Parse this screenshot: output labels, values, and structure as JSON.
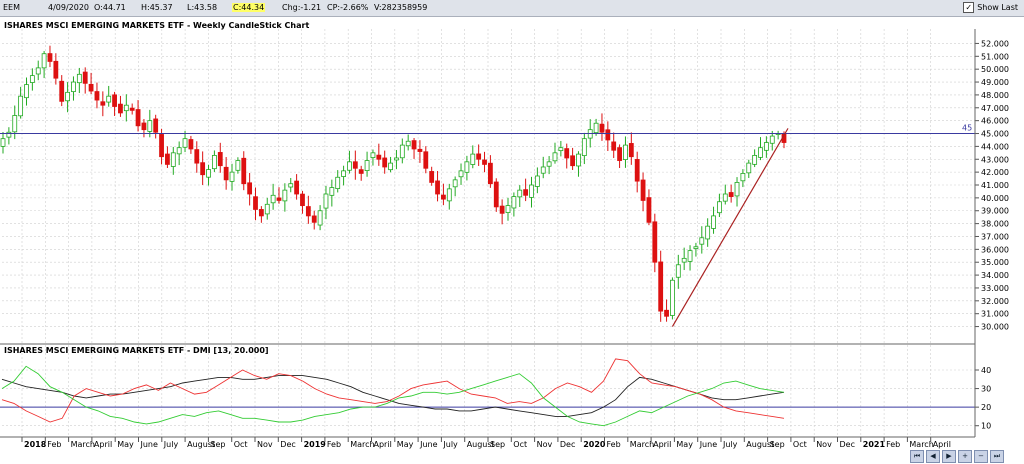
{
  "infobar": {
    "symbol": "EEM",
    "date": "4/09/2020",
    "open": "O:44.71",
    "high": "H:45.37",
    "low": "L:43.58",
    "close": "C:44.34",
    "change": "Chg:-1.21",
    "change_pct": "CP:-2.66%",
    "volume": "V:282358959",
    "show_last_label": "Show Last",
    "show_last_checked": true
  },
  "colors": {
    "up": "#22aa22",
    "down": "#dd1111",
    "level_line": "#3a3aa0",
    "trend_line": "#aa2222",
    "dmi_black": "#222222",
    "dmi_red": "#ee3333",
    "dmi_green": "#33cc33",
    "dmi_ref": "#3a3aa0"
  },
  "chart_data": [
    {
      "type": "candlestick",
      "title": "ISHARES MSCI EMERGING MARKETS ETF - Weekly CandleStick Chart",
      "ylim": [
        29.5,
        52.5
      ],
      "yticks": [
        "52.000",
        "51.000",
        "50.000",
        "49.000",
        "48.000",
        "47.000",
        "46.000",
        "45.000",
        "44.000",
        "43.000",
        "42.000",
        "41.000",
        "40.000",
        "39.000",
        "38.000",
        "37.000",
        "36.000",
        "35.000",
        "34.000",
        "33.000",
        "32.000",
        "31.000",
        "30.000"
      ],
      "horizontal_line": {
        "value": 45,
        "label": "45"
      },
      "trend_line": {
        "from": [
          "2020-03-20",
          30.0
        ],
        "to": [
          "2020-09-04",
          45.4
        ]
      },
      "grid": true,
      "weekly_closes": [
        44.6,
        45.1,
        46.4,
        47.9,
        48.8,
        49.5,
        50.1,
        51.2,
        50.6,
        49.3,
        47.5,
        48.2,
        49.0,
        49.6,
        48.9,
        48.3,
        47.6,
        47.2,
        47.9,
        47.1,
        46.6,
        47.2,
        46.8,
        45.6,
        45.3,
        46.0,
        45.1,
        43.2,
        42.6,
        43.5,
        43.9,
        44.6,
        43.8,
        42.7,
        41.8,
        42.2,
        43.3,
        42.5,
        41.4,
        42.0,
        42.9,
        41.1,
        40.3,
        39.1,
        38.6,
        39.5,
        40.2,
        39.8,
        40.6,
        41.1,
        40.3,
        39.4,
        38.6,
        38.1,
        39.0,
        40.3,
        40.8,
        41.6,
        42.1,
        42.8,
        42.3,
        41.9,
        42.9,
        43.5,
        43.0,
        42.4,
        42.7,
        43.1,
        44.1,
        44.4,
        43.8,
        43.6,
        42.3,
        41.2,
        40.3,
        39.9,
        40.7,
        41.4,
        42.1,
        42.8,
        43.4,
        43.0,
        42.6,
        41.1,
        39.3,
        38.8,
        39.4,
        40.1,
        40.6,
        40.2,
        41.0,
        41.7,
        42.4,
        42.8,
        43.5,
        43.9,
        43.1,
        42.5,
        43.4,
        44.6,
        45.3,
        45.8,
        45.1,
        44.5,
        43.7,
        42.9,
        44.1,
        43.2,
        41.3,
        39.8,
        38.1,
        35.0,
        31.2,
        30.8,
        33.6,
        34.8,
        35.3,
        35.9,
        36.2,
        36.9,
        37.8,
        38.6,
        39.7,
        40.3,
        40.1,
        41.2,
        41.9,
        42.7,
        43.3,
        43.9,
        44.3,
        44.8,
        45.0,
        44.3
      ],
      "x_month_labels": [
        "2018",
        "Feb",
        "March",
        "April",
        "May",
        "June",
        "July",
        "August",
        "Sep",
        "Oct",
        "Nov",
        "Dec",
        "2019",
        "Feb",
        "March",
        "April",
        "May",
        "June",
        "July",
        "August",
        "Sep",
        "Oct",
        "Nov",
        "Dec",
        "2020",
        "Feb",
        "March",
        "April",
        "May",
        "June",
        "July",
        "August",
        "Sep",
        "Oct",
        "Nov",
        "Dec",
        "2021",
        "Feb",
        "March",
        "April"
      ]
    },
    {
      "type": "line",
      "title": "ISHARES MSCI EMERGING MARKETS ETF - DMI [13, 20.000]",
      "ylim": [
        5,
        47
      ],
      "yticks": [
        "40",
        "30",
        "20",
        "10"
      ],
      "reference_line": 20,
      "series": [
        {
          "color": "black",
          "values": [
            35,
            33,
            31,
            30,
            29,
            28,
            26,
            25,
            26,
            27,
            27,
            28,
            29,
            30,
            31,
            33,
            34,
            35,
            36,
            36,
            35,
            35,
            36,
            37,
            37,
            37,
            36,
            35,
            33,
            31,
            28,
            26,
            24,
            22,
            21,
            20,
            19,
            19,
            18,
            18,
            19,
            20,
            19,
            18,
            17,
            16,
            15,
            15,
            16,
            17,
            20,
            24,
            31,
            36,
            35,
            33,
            31,
            29,
            27,
            25,
            24,
            24,
            25,
            26,
            27,
            28
          ]
        },
        {
          "color": "red",
          "values": [
            24,
            22,
            18,
            15,
            12,
            14,
            26,
            30,
            28,
            26,
            27,
            30,
            32,
            29,
            33,
            30,
            27,
            28,
            32,
            36,
            40,
            37,
            35,
            38,
            37,
            34,
            30,
            27,
            25,
            24,
            23,
            22,
            23,
            26,
            30,
            32,
            33,
            34,
            30,
            27,
            26,
            25,
            22,
            23,
            22,
            25,
            30,
            33,
            31,
            28,
            34,
            46,
            45,
            38,
            33,
            32,
            31,
            29,
            27,
            24,
            20,
            18,
            17,
            16,
            15,
            14
          ]
        },
        {
          "color": "green",
          "values": [
            30,
            34,
            42,
            38,
            31,
            28,
            24,
            20,
            18,
            15,
            14,
            12,
            11,
            12,
            14,
            16,
            15,
            17,
            18,
            16,
            14,
            14,
            13,
            12,
            12,
            13,
            15,
            16,
            17,
            19,
            20,
            20,
            22,
            25,
            26,
            28,
            28,
            27,
            28,
            30,
            32,
            34,
            36,
            38,
            33,
            25,
            20,
            15,
            12,
            11,
            10,
            12,
            15,
            18,
            17,
            20,
            23,
            26,
            28,
            30,
            33,
            34,
            32,
            30,
            29,
            28
          ]
        }
      ]
    }
  ]
}
